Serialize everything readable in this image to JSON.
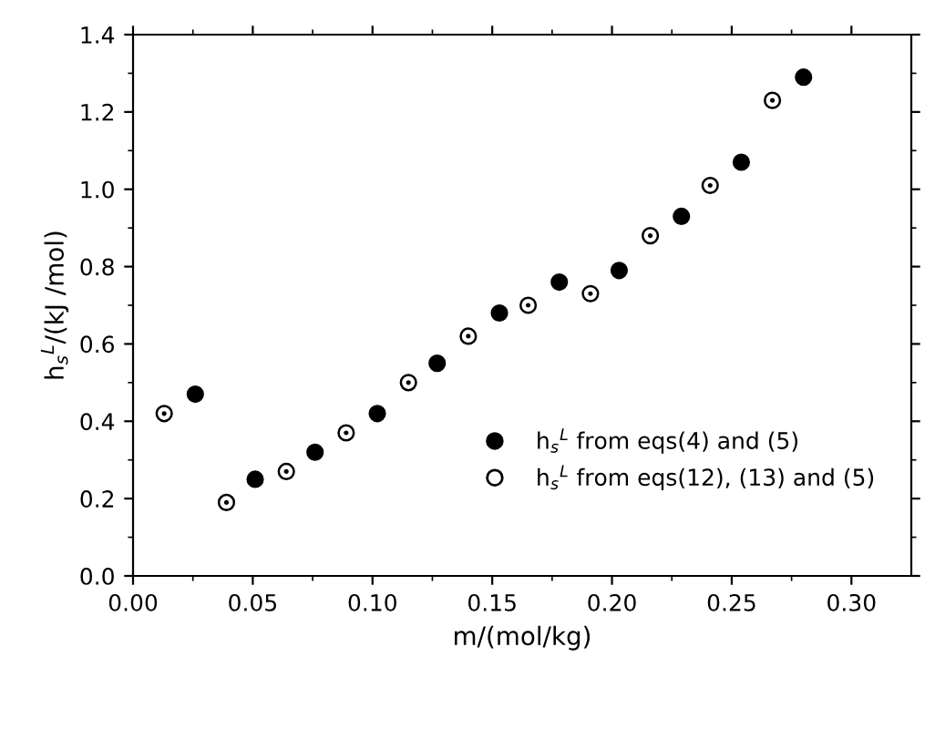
{
  "chart_data": {
    "type": "scatter",
    "xlabel": "m/(mol/kg)",
    "ylabel": "h$_{s}$$^{L}$/(kJ /mol)",
    "xlim": [
      0,
      0.325
    ],
    "xticks": [
      {
        "value": 0,
        "label": "0.00"
      },
      0.05,
      {
        "value": 0.1,
        "label": "0.10"
      },
      0.15,
      {
        "value": 0.2,
        "label": "0.20"
      },
      0.25,
      {
        "value": 0.3,
        "label": "0.30"
      }
    ],
    "ylim": [
      0,
      1.4
    ],
    "yticks": [
      {
        "value": 0,
        "label": "0.0"
      },
      0.2,
      0.4,
      0.6,
      0.8,
      {
        "value": 1.0,
        "label": "1.0"
      },
      1.2,
      1.4
    ],
    "grid": false,
    "legend": "bottom right",
    "marker": "circle",
    "series": [
      {
        "name": "h$_{s}$$^{L}$ from eqs(4) and (5)",
        "color": "#000000",
        "x": [
          0.026,
          0.051,
          0.076,
          0.102,
          0.127,
          0.153,
          0.178,
          0.203,
          0.229,
          0.254,
          0.28
        ],
        "values": [
          0.47,
          0.25,
          0.32,
          0.42,
          0.55,
          0.68,
          0.76,
          0.79,
          0.93,
          1.07,
          1.29
        ]
      },
      {
        "name": "h$_{s}$$^{L}$ from eqs(12), (13) and (5)",
        "color": "#ffffff",
        "x": [
          0.013,
          0.039,
          0.064,
          0.089,
          0.115,
          0.14,
          0.165,
          0.191,
          0.216,
          0.241,
          0.267
        ],
        "values": [
          0.42,
          0.19,
          0.27,
          0.37,
          0.5,
          0.62,
          0.7,
          0.73,
          0.88,
          1.01,
          1.23
        ]
      }
    ]
  }
}
